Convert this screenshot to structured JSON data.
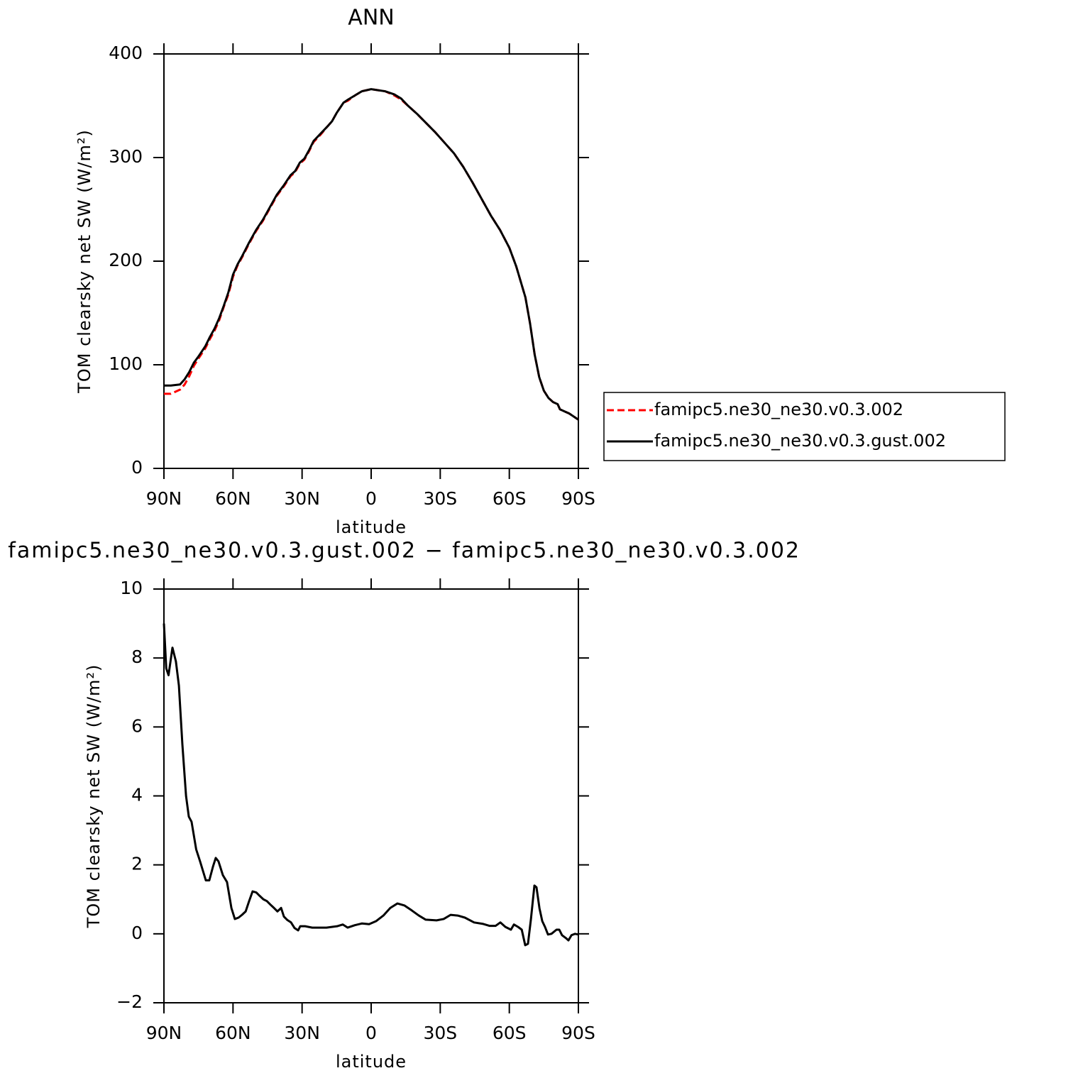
{
  "chart_data": [
    {
      "type": "line",
      "title": "ANN",
      "x_label": "latitude",
      "y_label": "TOM clearsky net SW (W/m²)",
      "xlim": [
        90,
        -90
      ],
      "xticks": [
        {
          "value": 90,
          "label": "90N"
        },
        {
          "value": 60,
          "label": "60N"
        },
        {
          "value": 30,
          "label": "30N"
        },
        0,
        {
          "value": -30,
          "label": "30S"
        },
        {
          "value": -60,
          "label": "60S"
        },
        {
          "value": -90,
          "label": "90S"
        }
      ],
      "ylim": [
        0,
        400
      ],
      "yticks": [
        0,
        100,
        200,
        300,
        400
      ],
      "legend": "right",
      "x": [
        90,
        87,
        83,
        81,
        79,
        77,
        75,
        72,
        70,
        68,
        66,
        64,
        62,
        60,
        58,
        56,
        53,
        50,
        47,
        44,
        41,
        38,
        35,
        33,
        31,
        29,
        27,
        25,
        22,
        19,
        17,
        15,
        12,
        10,
        7,
        4,
        2,
        0,
        -3,
        -6,
        -10,
        -13,
        -16,
        -20,
        -24,
        -28,
        -32,
        -36,
        -40,
        -44,
        -48,
        -52,
        -56,
        -60,
        -63,
        -65,
        -67,
        -69,
        -71,
        -73,
        -75,
        -77,
        -79,
        -81,
        -82,
        -84,
        -86,
        -88,
        -90
      ],
      "series": [
        {
          "name": "famipc5.ne30_ne30.v0.3.002",
          "color": "#ff0000",
          "linestyle": "dashed",
          "values": [
            72,
            72,
            76,
            81,
            89,
            99,
            106,
            116,
            125,
            133,
            143,
            156,
            168,
            185,
            196,
            204,
            217,
            229,
            239,
            251,
            263,
            272,
            282,
            286,
            294,
            298,
            306,
            315,
            322,
            330,
            335,
            343,
            353,
            355,
            360,
            364,
            365,
            366,
            365,
            364,
            360,
            356,
            350,
            342,
            333,
            324,
            314,
            304,
            291,
            276,
            260,
            244,
            230,
            213,
            195,
            180,
            165,
            140,
            110,
            88,
            75,
            68,
            64,
            62,
            57,
            55,
            53,
            50,
            47
          ]
        },
        {
          "name": "famipc5.ne30_ne30.v0.3.gust.002",
          "color": "#000000",
          "linestyle": "solid",
          "values": [
            80,
            80,
            81,
            86,
            93,
            102,
            108,
            118,
            127,
            135,
            145,
            157,
            170,
            187,
            197,
            205,
            218,
            230,
            240,
            252,
            264,
            273,
            283,
            287,
            295,
            299,
            307,
            316,
            323,
            330,
            335,
            343,
            353,
            356,
            360,
            364,
            365,
            366,
            365,
            364,
            361,
            357,
            350,
            342,
            333,
            324,
            314,
            304,
            291,
            276,
            260,
            244,
            230,
            213,
            195,
            180,
            165,
            140,
            110,
            88,
            75,
            68,
            64,
            62,
            57,
            55,
            53,
            50,
            47
          ]
        }
      ]
    },
    {
      "type": "line",
      "title": "famipc5.ne30_ne30.v0.3.gust.002 − famipc5.ne30_ne30.v0.3.002",
      "x_label": "latitude",
      "y_label": "TOM clearsky net SW (W/m²)",
      "xlim": [
        90,
        -90
      ],
      "xticks": [
        {
          "value": 90,
          "label": "90N"
        },
        {
          "value": 60,
          "label": "60N"
        },
        {
          "value": 30,
          "label": "30N"
        },
        0,
        {
          "value": -30,
          "label": "30S"
        },
        {
          "value": -60,
          "label": "60S"
        },
        {
          "value": -90,
          "label": "90S"
        }
      ],
      "ylim": [
        -2,
        10
      ],
      "yticks": [
        {
          "value": -2,
          "label": "−2"
        },
        0,
        2,
        4,
        6,
        8,
        10
      ],
      "x": [
        90,
        89,
        88,
        86.3,
        84.8,
        83.5,
        82,
        80.4,
        79.2,
        78,
        76,
        74.3,
        71.8,
        70.3,
        68.7,
        67.5,
        66.3,
        64.4,
        62.6,
        60.7,
        59.2,
        57.6,
        56.1,
        54.5,
        53,
        51.5,
        49.9,
        48.4,
        46.8,
        45.3,
        43.8,
        42.2,
        40.7,
        39.1,
        37.9,
        36.4,
        34.8,
        33.3,
        31.7,
        30.8,
        28.7,
        25.6,
        19.4,
        14.8,
        12.3,
        10.2,
        7.1,
        4,
        0.9,
        -2.2,
        -5.3,
        -8.3,
        -11.4,
        -14.5,
        -17.6,
        -20.7,
        -23.7,
        -28.4,
        -31.5,
        -34.5,
        -37.6,
        -40.7,
        -44.7,
        -48.4,
        -51.5,
        -54,
        -56.1,
        -58.3,
        -60.7,
        -62,
        -63.8,
        -65.4,
        -66.9,
        -68.1,
        -69.4,
        -70.9,
        -71.8,
        -73.1,
        -74.3,
        -75.5,
        -76.8,
        -78.3,
        -80.5,
        -81.7,
        -82.9,
        -84.5,
        -85.7,
        -87,
        -88.5,
        -90
      ],
      "series": [
        {
          "color": "#000000",
          "linestyle": "solid",
          "values": [
            9.0,
            7.7,
            7.5,
            8.3,
            7.9,
            7.2,
            5.5,
            4.0,
            3.4,
            3.25,
            2.45,
            2.1,
            1.55,
            1.55,
            1.95,
            2.2,
            2.1,
            1.7,
            1.5,
            0.75,
            0.43,
            0.47,
            0.55,
            0.65,
            0.95,
            1.23,
            1.2,
            1.1,
            1.0,
            0.95,
            0.85,
            0.75,
            0.65,
            0.75,
            0.5,
            0.4,
            0.33,
            0.17,
            0.1,
            0.22,
            0.22,
            0.18,
            0.18,
            0.22,
            0.27,
            0.18,
            0.25,
            0.3,
            0.28,
            0.37,
            0.53,
            0.75,
            0.88,
            0.82,
            0.68,
            0.53,
            0.41,
            0.39,
            0.43,
            0.55,
            0.53,
            0.47,
            0.33,
            0.29,
            0.23,
            0.23,
            0.33,
            0.2,
            0.12,
            0.27,
            0.2,
            0.12,
            -0.33,
            -0.29,
            0.43,
            1.4,
            1.35,
            0.74,
            0.37,
            0.2,
            -0.02,
            0,
            0.12,
            0.12,
            -0.04,
            -0.12,
            -0.19,
            -0.04,
            0,
            -0.02
          ]
        }
      ]
    }
  ]
}
